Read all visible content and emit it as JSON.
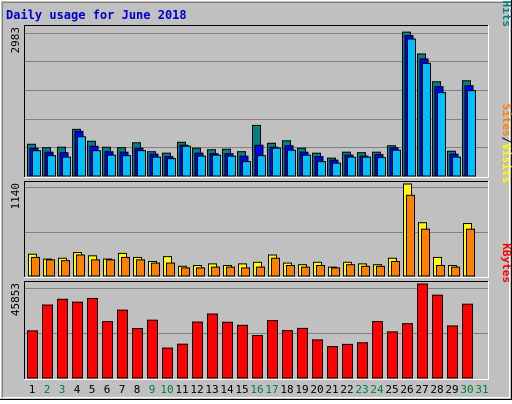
{
  "chart_data": {
    "type": "bar",
    "title": "Daily usage for June 2018",
    "categories": [
      "1",
      "2",
      "3",
      "4",
      "5",
      "6",
      "7",
      "8",
      "9",
      "10",
      "11",
      "12",
      "13",
      "14",
      "15",
      "16",
      "17",
      "18",
      "19",
      "20",
      "21",
      "22",
      "23",
      "24",
      "25",
      "26",
      "27",
      "28",
      "29",
      "30",
      "31"
    ],
    "weekend_days": [
      "2",
      "3",
      "9",
      "10",
      "16",
      "17",
      "23",
      "24",
      "30",
      "31"
    ],
    "colors": {
      "title": "#0000CC",
      "hits": "#008080",
      "files": "#0000FF",
      "pages": "#00BFFF",
      "visits": "#FFFF00",
      "sites": "#FF8000",
      "kbytes": "#FF0000",
      "weekday_label": "#000000",
      "weekend_label": "#008040",
      "plot_bg": "#C0C0C0",
      "page_bg": "#C0C0C0"
    },
    "panels": [
      {
        "id": "hits-files-pages",
        "max_label": "2983",
        "ylim": [
          0,
          2983
        ],
        "legend": [
          "Pages",
          "/",
          "Files",
          "/",
          "Hits"
        ],
        "series": [
          {
            "name": "Hits",
            "values": [
              640,
              570,
              580,
              940,
              700,
              580,
              570,
              670,
              490,
              460,
              680,
              560,
              530,
              540,
              490,
              1020,
              660,
              710,
              560,
              460,
              360,
              480,
              470,
              480,
              610,
              2900,
              2460,
              1900,
              500,
              1920,
              0
            ]
          },
          {
            "name": "Files",
            "values": [
              560,
              480,
              470,
              900,
              600,
              490,
              480,
              560,
              440,
              390,
              620,
              460,
              450,
              450,
              400,
              620,
              580,
              610,
              480,
              390,
              320,
              420,
              400,
              430,
              570,
              2830,
              2360,
              1800,
              440,
              1820,
              0
            ]
          },
          {
            "name": "Pages",
            "values": [
              510,
              410,
              380,
              790,
              510,
              420,
              410,
              510,
              380,
              350,
              600,
              400,
              420,
              400,
              290,
              410,
              560,
              520,
              420,
              290,
              260,
              380,
              380,
              370,
              520,
              2760,
              2270,
              1680,
              380,
              1720,
              0
            ]
          }
        ]
      },
      {
        "id": "visits-sites",
        "max_label": "1140",
        "ylim": [
          0,
          1140
        ],
        "legend": [
          "Sites",
          "/",
          "Visits"
        ],
        "series": [
          {
            "name": "Visits",
            "values": [
              270,
              210,
              220,
              290,
              250,
              210,
              280,
              230,
              180,
              240,
              120,
              130,
              150,
              130,
              150,
              170,
              260,
              160,
              140,
              170,
              110,
              170,
              150,
              140,
              220,
              1140,
              660,
              230,
              130,
              650,
              0
            ]
          },
          {
            "name": "Sites",
            "values": [
              230,
              200,
              190,
              260,
              200,
              200,
              230,
              200,
              160,
              160,
              100,
              100,
              110,
              110,
              100,
              110,
              220,
              130,
              110,
              130,
              100,
              140,
              120,
              120,
              180,
              1000,
              580,
              130,
              110,
              580,
              0
            ]
          }
        ]
      },
      {
        "id": "kbytes",
        "max_label": "45853",
        "ylim": [
          0,
          45853
        ],
        "legend": [
          "KBytes"
        ],
        "series": [
          {
            "name": "KBytes",
            "values": [
              23000,
              35600,
              38400,
              37000,
              38800,
              27500,
              33100,
              24100,
              28200,
              14600,
              16500,
              27300,
              31200,
              27200,
              25700,
              20700,
              28000,
              23100,
              24200,
              18600,
              15300,
              16400,
              17200,
              27500,
              22500,
              26500,
              45853,
              40400,
              25400,
              36000,
              0
            ]
          }
        ]
      }
    ]
  }
}
